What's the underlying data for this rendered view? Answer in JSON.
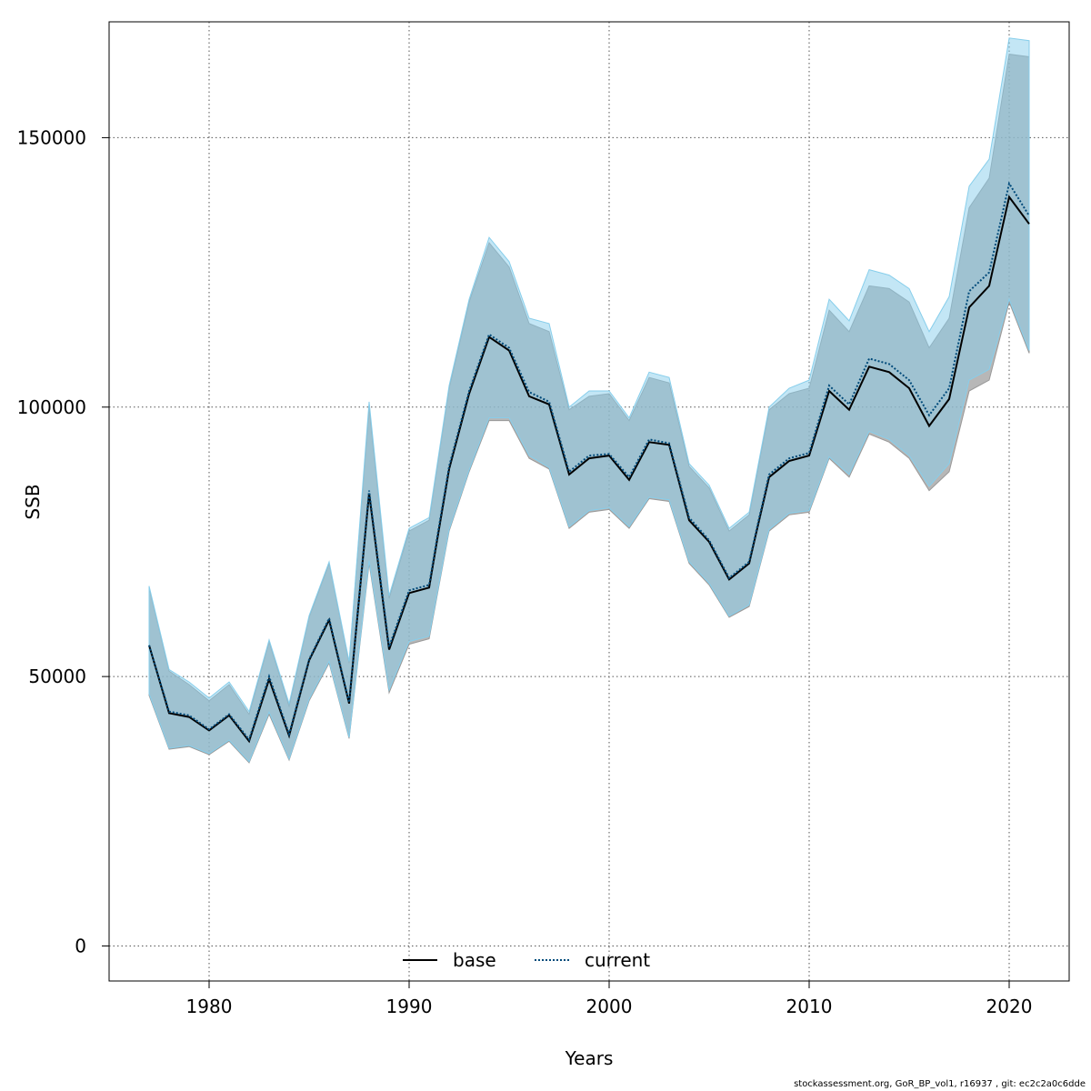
{
  "chart_data": {
    "type": "area",
    "xlabel": "Years",
    "ylabel": "SSB",
    "xlim": [
      1975,
      2023
    ],
    "ylim": [
      -6500,
      171500
    ],
    "xticks": [
      1980,
      1990,
      2000,
      2010,
      2020
    ],
    "yticks": [
      0,
      50000,
      100000,
      150000
    ],
    "grid": true,
    "legend_position": "bottom-center",
    "x": [
      1977,
      1978,
      1979,
      1980,
      1981,
      1982,
      1983,
      1984,
      1985,
      1986,
      1987,
      1988,
      1989,
      1990,
      1991,
      1992,
      1993,
      1994,
      1995,
      1996,
      1997,
      1998,
      1999,
      2000,
      2001,
      2002,
      2003,
      2004,
      2005,
      2006,
      2007,
      2008,
      2009,
      2010,
      2011,
      2012,
      2013,
      2014,
      2015,
      2016,
      2017,
      2018,
      2019,
      2020,
      2021
    ],
    "series": [
      {
        "name": "base",
        "line_style": "solid",
        "line_color": "#000000",
        "band_color": "#999999",
        "values": [
          55800,
          43200,
          42500,
          40000,
          42800,
          38000,
          49500,
          39000,
          53000,
          60500,
          45000,
          84000,
          55000,
          65500,
          66500,
          88500,
          102500,
          113000,
          110500,
          102000,
          100500,
          87500,
          90500,
          91000,
          86500,
          93500,
          93000,
          79000,
          75000,
          68000,
          71000,
          87000,
          90000,
          91000,
          103000,
          99500,
          107500,
          106500,
          103500,
          96500,
          101500,
          118500,
          122500,
          139000,
          134000
        ],
        "lower": [
          46500,
          36500,
          37000,
          35500,
          38000,
          34000,
          43000,
          34500,
          45500,
          52500,
          38500,
          71000,
          47000,
          56000,
          57000,
          77000,
          88000,
          97500,
          97500,
          90500,
          88500,
          77500,
          80500,
          81000,
          77500,
          83000,
          82500,
          71000,
          67000,
          61000,
          63000,
          77000,
          80000,
          80500,
          90500,
          87000,
          95000,
          93500,
          90500,
          84500,
          88000,
          103000,
          105000,
          119500,
          110000
        ],
        "upper": [
          66500,
          51000,
          48500,
          45500,
          48500,
          43000,
          56500,
          44500,
          61000,
          71000,
          52500,
          100000,
          64500,
          77000,
          79000,
          103500,
          119500,
          130500,
          126000,
          115500,
          114000,
          99500,
          102000,
          102500,
          97500,
          105500,
          104500,
          89000,
          85000,
          77000,
          80000,
          99500,
          102500,
          103500,
          118000,
          114000,
          122500,
          122000,
          119500,
          111000,
          116500,
          137000,
          142500,
          165500,
          165000
        ]
      },
      {
        "name": "current",
        "line_style": "dotted",
        "line_color": "#004a7a",
        "band_color": "#87ceeb",
        "values": [
          55800,
          43500,
          42800,
          40200,
          43000,
          38300,
          50000,
          39300,
          53200,
          60800,
          45200,
          84500,
          55500,
          66000,
          67000,
          89000,
          103000,
          113500,
          111000,
          102800,
          101000,
          88000,
          91000,
          91300,
          87000,
          94000,
          93300,
          79500,
          75300,
          68300,
          71300,
          87500,
          90500,
          91500,
          104000,
          100500,
          109000,
          108000,
          105000,
          98500,
          103500,
          121500,
          125000,
          141500,
          135500
        ],
        "lower": [
          46800,
          36700,
          37200,
          35700,
          38200,
          34200,
          43400,
          34700,
          45800,
          52800,
          38700,
          71500,
          47500,
          56500,
          57500,
          77300,
          88300,
          98000,
          98000,
          91000,
          88800,
          77800,
          80800,
          81300,
          77800,
          83300,
          82800,
          71300,
          67300,
          61200,
          63300,
          77300,
          80300,
          80800,
          90800,
          87500,
          95500,
          94000,
          91000,
          85300,
          89500,
          105000,
          107000,
          120000,
          110500
        ],
        "upper": [
          66800,
          51300,
          49000,
          46000,
          49000,
          43500,
          56800,
          45000,
          61300,
          71300,
          52800,
          101000,
          65000,
          77500,
          79500,
          104000,
          120000,
          131500,
          127000,
          116500,
          115500,
          100000,
          103000,
          103000,
          98000,
          106500,
          105500,
          89500,
          85500,
          77500,
          80500,
          100000,
          103500,
          105000,
          120000,
          116000,
          125500,
          124500,
          122000,
          114000,
          120500,
          141000,
          146000,
          168500,
          168000
        ]
      }
    ]
  },
  "footer_text": "stockassessment.org, GoR_BP_vol1, r16937 , git: ec2c2a0c6dde"
}
